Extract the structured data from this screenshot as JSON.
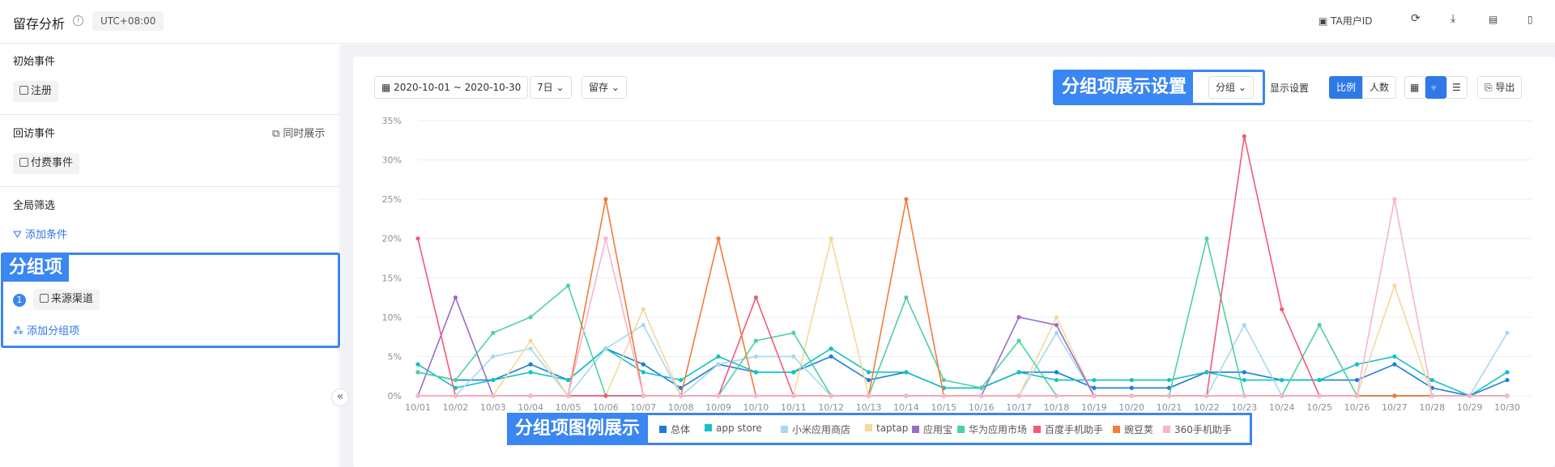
{
  "header": {
    "title": "留存分析",
    "info": "i",
    "timezone": "UTC+08:00",
    "ta_user_id": "TA用户ID"
  },
  "sidebar": {
    "initial_event_title": "初始事件",
    "initial_event": "注册",
    "return_event_title": "回访事件",
    "show_together": "同时展示",
    "return_event": "付费事件",
    "global_filter_title": "全局筛选",
    "add_condition": "添加条件",
    "group_label": "分组项",
    "group_index": "1",
    "group_item": "来源渠道",
    "add_group": "添加分组项",
    "collapse": "«"
  },
  "toolbar": {
    "date_range": "2020-10-01 ~ 2020-10-30",
    "period": "7日",
    "metric": "留存",
    "group_setting_label": "分组项展示设置",
    "group_btn": "分组",
    "display_settings": "显示设置",
    "ratio": "比例",
    "count": "人数",
    "export": "导出"
  },
  "legend_label": "分组项图例展示",
  "chart_data": {
    "type": "line",
    "ylim": [
      0,
      35
    ],
    "yticks": [
      "0%",
      "5%",
      "10%",
      "15%",
      "20%",
      "25%",
      "30%",
      "35%"
    ],
    "categories": [
      "10/01",
      "10/02",
      "10/03",
      "10/04",
      "10/05",
      "10/06",
      "10/07",
      "10/08",
      "10/09",
      "10/10",
      "10/11",
      "10/12",
      "10/13",
      "10/14",
      "10/15",
      "10/16",
      "10/17",
      "10/18",
      "10/19",
      "10/20",
      "10/21",
      "10/22",
      "10/23",
      "10/24",
      "10/25",
      "10/26",
      "10/27",
      "10/28",
      "10/29",
      "10/30"
    ],
    "series": [
      {
        "name": "总体",
        "color": "#1b7fd8",
        "values": [
          3,
          2,
          2,
          4,
          2,
          6,
          4,
          1,
          4,
          3,
          3,
          5,
          2,
          3,
          1,
          1,
          3,
          3,
          1,
          1,
          1,
          3,
          3,
          2,
          2,
          2,
          4,
          1,
          0,
          2
        ]
      },
      {
        "name": "app store",
        "color": "#13c2c2",
        "values": [
          4,
          1,
          2,
          3,
          2,
          6,
          3,
          2,
          5,
          3,
          3,
          6,
          3,
          3,
          1,
          1,
          3,
          2,
          2,
          2,
          2,
          3,
          2,
          2,
          2,
          4,
          5,
          2,
          0,
          3
        ]
      },
      {
        "name": "小米应用商店",
        "color": "#a5d8f3",
        "values": [
          0,
          0,
          5,
          6,
          0,
          6,
          9,
          0,
          4,
          5,
          5,
          0,
          0,
          0,
          0,
          0,
          0,
          8,
          0,
          0,
          0,
          0,
          9,
          0,
          0,
          0,
          0,
          0,
          0,
          8
        ]
      },
      {
        "name": "taptap",
        "color": "#f5d89a",
        "values": [
          0,
          0,
          0,
          7,
          0,
          0,
          11,
          0,
          0,
          0,
          0,
          20,
          0,
          0,
          0,
          0,
          0,
          10,
          0,
          0,
          0,
          0,
          0,
          0,
          0,
          0,
          14,
          0,
          0,
          0
        ]
      },
      {
        "name": "应用宝",
        "color": "#9b6bc8",
        "values": [
          0,
          12.5,
          0,
          0,
          0,
          0,
          0,
          0,
          0,
          0,
          0,
          0,
          0,
          0,
          0,
          0,
          10,
          9,
          0,
          0,
          0,
          0,
          0,
          0,
          0,
          0,
          0,
          0,
          0,
          0
        ]
      },
      {
        "name": "华为应用市场",
        "color": "#4fd1a0",
        "values": [
          3,
          2,
          8,
          10,
          14,
          0,
          0,
          0,
          0,
          7,
          8,
          0,
          0,
          12.5,
          2,
          1,
          7,
          0,
          0,
          0,
          0,
          20,
          0,
          0,
          9,
          0,
          0,
          0,
          0,
          0
        ]
      },
      {
        "name": "百度手机助手",
        "color": "#f25a78",
        "values": [
          20,
          0,
          0,
          0,
          0,
          0,
          0,
          0,
          0,
          12.5,
          0,
          0,
          0,
          0,
          0,
          0,
          0,
          0,
          0,
          0,
          0,
          0,
          33,
          11,
          0,
          0,
          0,
          0,
          0,
          0
        ]
      },
      {
        "name": "豌豆荚",
        "color": "#f27c3a",
        "values": [
          0,
          0,
          0,
          0,
          0,
          25,
          0,
          0,
          20,
          0,
          0,
          0,
          0,
          25,
          0,
          0,
          0,
          0,
          0,
          0,
          0,
          0,
          0,
          0,
          0,
          0,
          0,
          0,
          0,
          0
        ]
      },
      {
        "name": "360手机助手",
        "color": "#f7b4cf",
        "values": [
          0,
          0,
          0,
          0,
          0,
          20,
          0,
          0,
          0,
          0,
          0,
          0,
          0,
          0,
          0,
          0,
          0,
          0,
          0,
          0,
          0,
          0,
          0,
          0,
          0,
          0,
          25,
          0,
          0,
          0
        ]
      }
    ]
  }
}
